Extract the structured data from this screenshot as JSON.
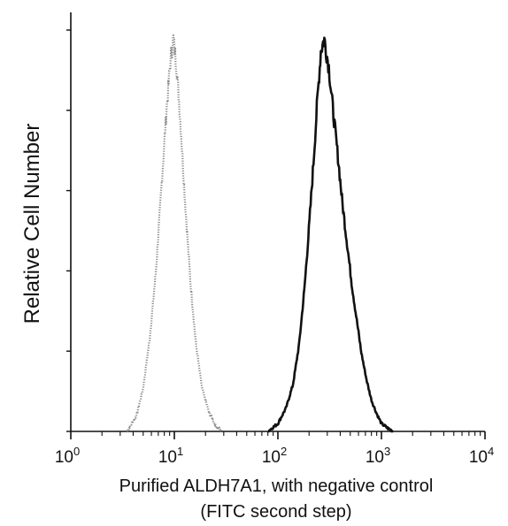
{
  "chart_data": {
    "type": "histogram",
    "x_scale": "log",
    "xlim": [
      1,
      10000
    ],
    "ylim": [
      0,
      1
    ],
    "ylabel": "Relative Cell Number",
    "xlabel_line1": "Purified ALDH7A1, with negative control",
    "xlabel_line2": "(FITC second step)",
    "x_ticks": [
      {
        "base": "10",
        "exp": "0"
      },
      {
        "base": "10",
        "exp": "1"
      },
      {
        "base": "10",
        "exp": "2"
      },
      {
        "base": "10",
        "exp": "3"
      },
      {
        "base": "10",
        "exp": "4"
      }
    ],
    "y_minor_ticks": 5,
    "grid": false,
    "series": [
      {
        "style": "dotted",
        "color": "#8a8a8a",
        "x": [
          3.5,
          4.3,
          5.0,
          5.8,
          6.6,
          7.5,
          8.4,
          9.2,
          9.8,
          10.5,
          11.5,
          12.8,
          14.3,
          16.2,
          18.5,
          21.5,
          25.0,
          29.0
        ],
        "y": [
          0.0,
          0.04,
          0.11,
          0.24,
          0.4,
          0.62,
          0.82,
          0.95,
          1.0,
          0.93,
          0.78,
          0.57,
          0.38,
          0.22,
          0.11,
          0.05,
          0.015,
          0.0
        ]
      },
      {
        "style": "solid",
        "color": "#111111",
        "x": [
          80,
          100,
          120,
          140,
          160,
          180,
          200,
          220,
          240,
          260,
          280,
          310,
          340,
          380,
          420,
          470,
          520,
          580,
          640,
          720,
          800,
          900,
          1000,
          1150,
          1300
        ],
        "y": [
          0.0,
          0.02,
          0.06,
          0.12,
          0.22,
          0.36,
          0.52,
          0.68,
          0.84,
          0.97,
          1.0,
          0.93,
          0.82,
          0.7,
          0.58,
          0.47,
          0.37,
          0.28,
          0.2,
          0.13,
          0.08,
          0.045,
          0.02,
          0.008,
          0.0
        ]
      }
    ]
  }
}
